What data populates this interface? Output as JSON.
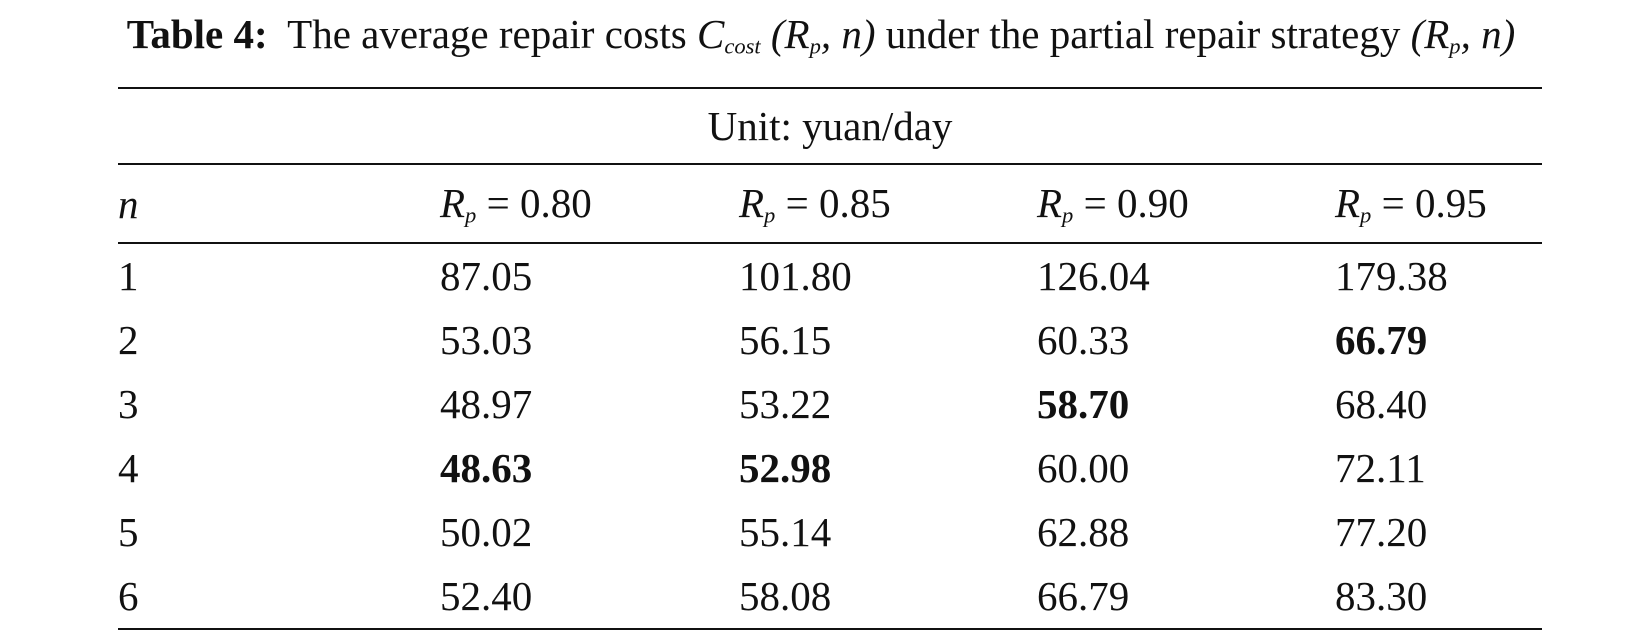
{
  "caption": {
    "label": "Table 4:",
    "text1": "The average repair costs",
    "symbol": "C",
    "symbol_sub": "cost",
    "arg_open": "(R",
    "arg_sub": "p",
    "arg_close": ", n)",
    "text2": "under the partial repair strategy"
  },
  "table": {
    "unit": "Unit: yuan/day",
    "header": {
      "first": "n",
      "columns": [
        {
          "symbol": "R",
          "sub": "p",
          "value": "= 0.80"
        },
        {
          "symbol": "R",
          "sub": "p",
          "value": "= 0.85"
        },
        {
          "symbol": "R",
          "sub": "p",
          "value": "= 0.90"
        },
        {
          "symbol": "R",
          "sub": "p",
          "value": "= 0.95"
        }
      ]
    },
    "rows": [
      {
        "n": "1",
        "values": [
          "87.05",
          "101.80",
          "126.04",
          "179.38"
        ],
        "bold": [
          false,
          false,
          false,
          false
        ]
      },
      {
        "n": "2",
        "values": [
          "53.03",
          "56.15",
          "60.33",
          "66.79"
        ],
        "bold": [
          false,
          false,
          false,
          true
        ]
      },
      {
        "n": "3",
        "values": [
          "48.97",
          "53.22",
          "58.70",
          "68.40"
        ],
        "bold": [
          false,
          false,
          true,
          false
        ]
      },
      {
        "n": "4",
        "values": [
          "48.63",
          "52.98",
          "60.00",
          "72.11"
        ],
        "bold": [
          true,
          true,
          false,
          false
        ]
      },
      {
        "n": "5",
        "values": [
          "50.02",
          "55.14",
          "62.88",
          "77.20"
        ],
        "bold": [
          false,
          false,
          false,
          false
        ]
      },
      {
        "n": "6",
        "values": [
          "52.40",
          "58.08",
          "66.79",
          "83.30"
        ],
        "bold": [
          false,
          false,
          false,
          false
        ]
      }
    ]
  }
}
